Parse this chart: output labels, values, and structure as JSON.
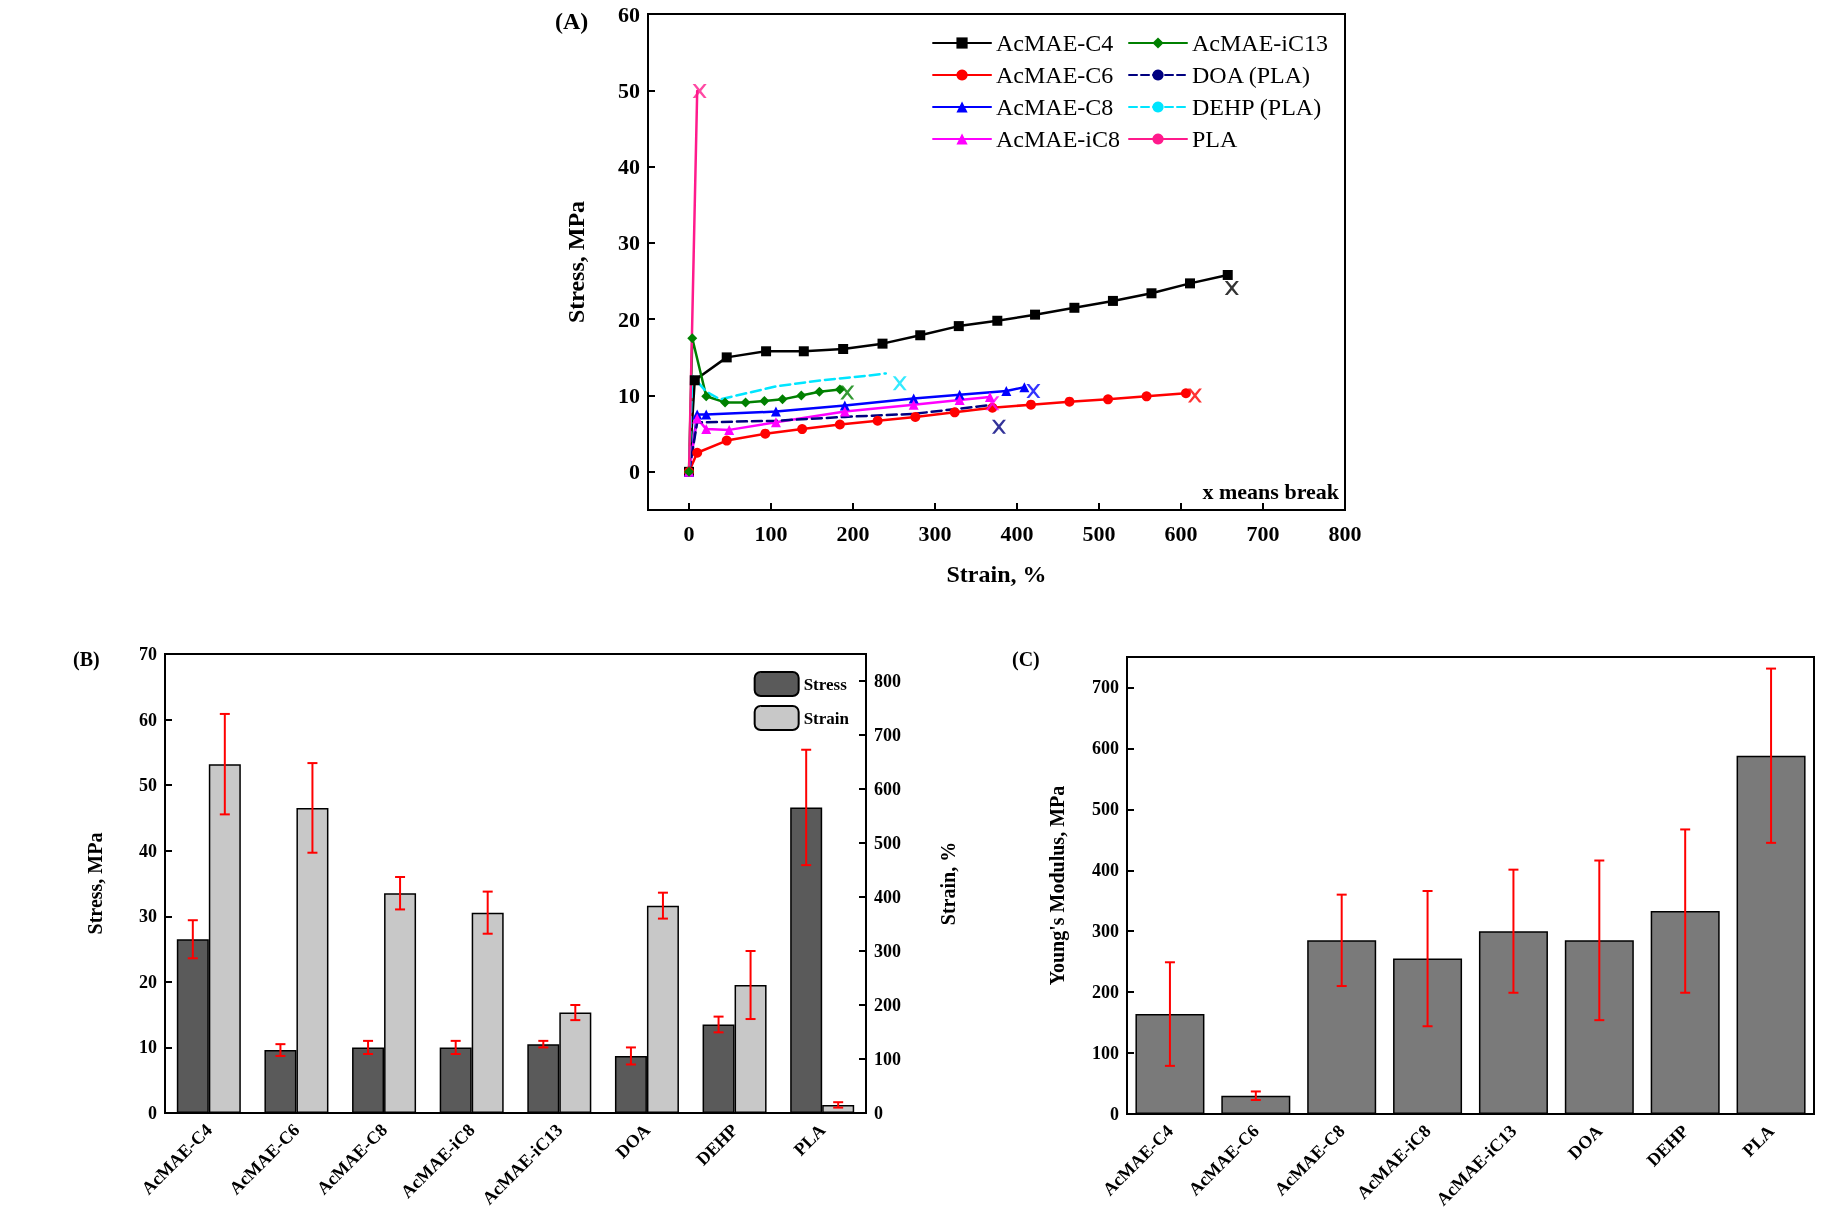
{
  "chart_data": [
    {
      "type": "line",
      "title": "(A)",
      "xlabel": "Strain, %",
      "ylabel": "Stress, MPa",
      "xlim": [
        -50,
        800
      ],
      "xticks": [
        0,
        100,
        200,
        300,
        400,
        500,
        600,
        700,
        800
      ],
      "ylim": [
        -5,
        60
      ],
      "yticks": [
        0,
        10,
        20,
        30,
        40,
        50,
        60
      ],
      "legend": "top right",
      "annotations": [
        "x means break"
      ],
      "series": [
        {
          "name": "AcMAE-C4",
          "color": "#000000",
          "marker": "square",
          "line_style": "solid",
          "x": [
            0,
            7,
            46,
            94,
            140,
            188,
            236,
            282,
            329,
            376,
            422,
            470,
            517,
            564,
            611,
            657
          ],
          "values": [
            0,
            12,
            15,
            15.8,
            15.8,
            16.1,
            16.8,
            17.9,
            19.1,
            19.8,
            20.6,
            21.5,
            22.4,
            23.4,
            24.7,
            25.8
          ]
        },
        {
          "name": "AcMAE-C6",
          "color": "#ff0000",
          "marker": "circle",
          "line_style": "solid",
          "x": [
            0,
            10,
            46,
            93,
            138,
            184,
            230,
            276,
            324,
            370,
            417,
            464,
            511,
            558,
            606
          ],
          "values": [
            0,
            2.5,
            4.1,
            5,
            5.6,
            6.2,
            6.7,
            7.2,
            7.8,
            8.4,
            8.8,
            9.2,
            9.5,
            9.9,
            10.3
          ]
        },
        {
          "name": "AcMAE-C8",
          "color": "#0000ff",
          "marker": "triangle",
          "line_style": "solid",
          "x": [
            0,
            10,
            21,
            106,
            190,
            274,
            330,
            387,
            409
          ],
          "values": [
            0,
            7.5,
            7.5,
            7.9,
            8.7,
            9.6,
            10.1,
            10.6,
            11.1
          ]
        },
        {
          "name": "AcMAE-iC8",
          "color": "#ff00ff",
          "marker": "triangle",
          "line_style": "solid",
          "x": [
            0,
            10,
            21,
            49,
            106,
            190,
            274,
            330,
            367
          ],
          "values": [
            0,
            7,
            5.6,
            5.5,
            6.5,
            7.9,
            8.8,
            9.4,
            9.8
          ]
        },
        {
          "name": "AcMAE-iC13",
          "color": "#008000",
          "marker": "diamond",
          "line_style": "solid",
          "x": [
            0,
            4,
            21,
            44,
            69,
            92,
            114,
            137,
            159,
            184
          ],
          "values": [
            0,
            17.5,
            9.9,
            9.1,
            9.1,
            9.3,
            9.5,
            10,
            10.5,
            10.8
          ]
        },
        {
          "name": "DOA (PLA)",
          "color": "#000080",
          "marker": "none",
          "line_style": "dashed",
          "x": [
            0,
            10,
            21,
            106,
            190,
            274,
            364
          ],
          "values": [
            0,
            6.5,
            6.5,
            6.7,
            7.2,
            7.6,
            8.7
          ]
        },
        {
          "name": "DEHP (PLA)",
          "color": "#00e5ff",
          "marker": "none",
          "line_style": "dashed",
          "x": [
            0,
            4,
            21,
            38,
            66,
            106,
            162,
            218,
            240
          ],
          "values": [
            0,
            12.6,
            10.5,
            9.5,
            10.2,
            11.2,
            12,
            12.6,
            12.9
          ]
        },
        {
          "name": "PLA",
          "color": "#ff1a8c",
          "marker": "none",
          "line_style": "solid",
          "x": [
            0,
            10
          ],
          "values": [
            0,
            49.9
          ]
        },
        {
          "type": "scatter",
          "marker": "cross",
          "colors": [
            "#000000",
            "#ff0000",
            "#0000ff",
            "#ff00ff",
            "#008000",
            "#000080",
            "#00e5ff",
            "#ff1a8c"
          ],
          "x": [
            662,
            617,
            420,
            370,
            193,
            378,
            257,
            13
          ],
          "values": [
            24.1,
            10,
            10.6,
            9,
            10.4,
            5.9,
            11.6,
            49.9
          ]
        }
      ]
    },
    {
      "type": "bar",
      "title": "(B)",
      "ylabel": "Stress, MPa",
      "y2label": "Strain, %",
      "categories": [
        "AcMAE-C4",
        "AcMAE-C6",
        "AcMAE-C8",
        "AcMAE-iC8",
        "AcMAE-iC13",
        "DOA",
        "DEHP",
        "PLA"
      ],
      "ylim": [
        0,
        70
      ],
      "yticks": [
        0,
        10,
        20,
        30,
        40,
        50,
        60,
        70
      ],
      "y2lim": [
        0,
        850
      ],
      "y2ticks": [
        0,
        100,
        200,
        300,
        400,
        500,
        600,
        700,
        800
      ],
      "legend": "top right",
      "series": [
        {
          "name": "Stress",
          "color": "#5a5a5a",
          "values": [
            26.5,
            9.6,
            10,
            10,
            10.5,
            8.7,
            13.5,
            46.6
          ],
          "errors": [
            2.9,
            0.9,
            1,
            1,
            0.5,
            1.3,
            1.2,
            8.8
          ]
        },
        {
          "name": "Strain",
          "color": "#c8c8c8",
          "axis": "y2",
          "values": [
            646,
            565,
            407,
            371,
            186,
            384,
            237,
            15
          ],
          "errors": [
            93,
            83,
            30,
            39,
            14,
            24,
            63,
            5
          ]
        }
      ]
    },
    {
      "type": "bar",
      "title": "(C)",
      "ylabel": "Young's Modulus, MPa",
      "categories": [
        "AcMAE-C4",
        "AcMAE-C6",
        "AcMAE-C8",
        "AcMAE-iC8",
        "AcMAE-iC13",
        "DOA",
        "DEHP",
        "PLA"
      ],
      "ylim": [
        0,
        750
      ],
      "yticks": [
        0,
        100,
        200,
        300,
        400,
        500,
        600,
        700
      ],
      "color": "#7a7a7a",
      "values": [
        164,
        30,
        285,
        255,
        300,
        285,
        333,
        588
      ],
      "errors": [
        85,
        7,
        75,
        111,
        101,
        131,
        134,
        143
      ]
    }
  ]
}
